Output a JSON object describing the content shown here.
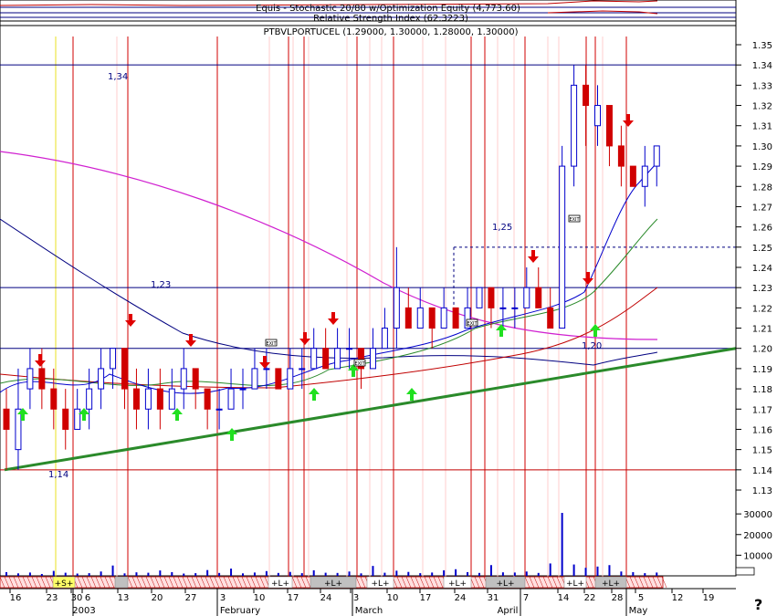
{
  "header": {
    "line1": "Equis - Stochastic 20/80 w/Optimization Equity (4,773.60)",
    "line2": "Relative Strength Index (62.3223)",
    "line3": "PTBVLPORTUCEL (1.29000, 1.30000, 1.28000, 1.30000)"
  },
  "chart_data": {
    "type": "candlestick",
    "title": "PTBVLPORTUCEL (1.29000, 1.30000, 1.28000, 1.30000)",
    "price_axis": {
      "ylim": [
        1.125,
        1.36
      ],
      "ticks": [
        "1.35",
        "1.34",
        "1.33",
        "1.32",
        "1.31",
        "1.30",
        "1.29",
        "1.28",
        "1.27",
        "1.26",
        "1.25",
        "1.24",
        "1.23",
        "1.22",
        "1.21",
        "1.20",
        "1.19",
        "1.18",
        "1.17",
        "1.16",
        "1.15",
        "1.14",
        "1.13"
      ]
    },
    "volume_axis": {
      "ylim": [
        0,
        32000
      ],
      "ticks": [
        "30000",
        "20000",
        "10000"
      ]
    },
    "date_ticks": [
      "16",
      "23",
      "30",
      "6",
      "13",
      "20",
      "27",
      "3",
      "10",
      "17",
      "24",
      "3",
      "10",
      "17",
      "24",
      "31",
      "7",
      "14",
      "22",
      "28",
      "5",
      "12",
      "19"
    ],
    "month_labels": [
      "2003",
      "February",
      "March",
      "April",
      "May"
    ],
    "horizontal_levels": [
      {
        "value": 1.34,
        "label": "1,34"
      },
      {
        "value": 1.23,
        "label": "1,23"
      },
      {
        "value": 1.2,
        "label": "1,20"
      },
      {
        "value": 1.14,
        "label": "1,14"
      },
      {
        "value": 1.25,
        "label": "1,25",
        "style": "dashed"
      }
    ],
    "trendline": {
      "from": [
        "16 Jan",
        1.14
      ],
      "to": [
        "19 May",
        1.2
      ]
    },
    "candles": [
      [
        1.17,
        1.16,
        1.14,
        1.18
      ],
      [
        1.15,
        1.17,
        1.14,
        1.19
      ],
      [
        1.18,
        1.19,
        1.17,
        1.2
      ],
      [
        1.19,
        1.18,
        1.17,
        1.2
      ],
      [
        1.18,
        1.17,
        1.16,
        1.19
      ],
      [
        1.17,
        1.16,
        1.15,
        1.18
      ],
      [
        1.16,
        1.17,
        1.16,
        1.18
      ],
      [
        1.17,
        1.18,
        1.16,
        1.19
      ],
      [
        1.18,
        1.19,
        1.17,
        1.2
      ],
      [
        1.19,
        1.2,
        1.18,
        1.2
      ],
      [
        1.2,
        1.18,
        1.17,
        1.2
      ],
      [
        1.18,
        1.17,
        1.16,
        1.19
      ],
      [
        1.17,
        1.18,
        1.16,
        1.19
      ],
      [
        1.18,
        1.17,
        1.16,
        1.19
      ],
      [
        1.17,
        1.18,
        1.17,
        1.19
      ],
      [
        1.18,
        1.19,
        1.17,
        1.2
      ],
      [
        1.19,
        1.18,
        1.17,
        1.19
      ],
      [
        1.18,
        1.17,
        1.16,
        1.18
      ],
      [
        1.17,
        1.17,
        1.16,
        1.18
      ],
      [
        1.17,
        1.18,
        1.17,
        1.19
      ],
      [
        1.18,
        1.18,
        1.17,
        1.19
      ],
      [
        1.18,
        1.19,
        1.18,
        1.2
      ],
      [
        1.19,
        1.19,
        1.18,
        1.2
      ],
      [
        1.19,
        1.18,
        1.18,
        1.19
      ],
      [
        1.18,
        1.19,
        1.18,
        1.2
      ],
      [
        1.19,
        1.19,
        1.18,
        1.2
      ],
      [
        1.19,
        1.2,
        1.19,
        1.21
      ],
      [
        1.2,
        1.19,
        1.19,
        1.21
      ],
      [
        1.19,
        1.2,
        1.19,
        1.21
      ],
      [
        1.2,
        1.2,
        1.19,
        1.21
      ],
      [
        1.2,
        1.19,
        1.18,
        1.2
      ],
      [
        1.19,
        1.2,
        1.19,
        1.21
      ],
      [
        1.2,
        1.21,
        1.2,
        1.22
      ],
      [
        1.21,
        1.23,
        1.2,
        1.25
      ],
      [
        1.22,
        1.21,
        1.21,
        1.23
      ],
      [
        1.21,
        1.22,
        1.21,
        1.23
      ],
      [
        1.22,
        1.21,
        1.2,
        1.22
      ],
      [
        1.21,
        1.22,
        1.21,
        1.23
      ],
      [
        1.22,
        1.21,
        1.21,
        1.22
      ],
      [
        1.21,
        1.22,
        1.21,
        1.23
      ],
      [
        1.22,
        1.23,
        1.22,
        1.23
      ],
      [
        1.23,
        1.22,
        1.21,
        1.23
      ],
      [
        1.22,
        1.22,
        1.21,
        1.23
      ],
      [
        1.22,
        1.22,
        1.21,
        1.23
      ],
      [
        1.22,
        1.23,
        1.22,
        1.24
      ],
      [
        1.23,
        1.22,
        1.22,
        1.24
      ],
      [
        1.22,
        1.21,
        1.21,
        1.23
      ],
      [
        1.21,
        1.29,
        1.21,
        1.3
      ],
      [
        1.29,
        1.33,
        1.28,
        1.34
      ],
      [
        1.33,
        1.32,
        1.3,
        1.34
      ],
      [
        1.31,
        1.32,
        1.3,
        1.33
      ],
      [
        1.32,
        1.3,
        1.29,
        1.32
      ],
      [
        1.3,
        1.29,
        1.28,
        1.31
      ],
      [
        1.29,
        1.28,
        1.28,
        1.29
      ],
      [
        1.28,
        1.29,
        1.27,
        1.3
      ],
      [
        1.29,
        1.3,
        1.28,
        1.3
      ]
    ],
    "volume": [
      1800,
      1200,
      1600,
      900,
      2400,
      1500,
      1100,
      1300,
      2100,
      5000,
      1200,
      1700,
      1500,
      2600,
      1800,
      1100,
      1300,
      2800,
      1400,
      3500,
      1200,
      1600,
      2300,
      1400,
      1900,
      1300,
      2700,
      1500,
      1400,
      2100,
      1200,
      4800,
      1500,
      2500,
      1900,
      1300,
      1600,
      2700,
      3200,
      1800,
      1400,
      5200,
      1700,
      1600,
      2100,
      1400,
      6000,
      30500,
      5500,
      3900,
      4500,
      5200,
      2100,
      1800,
      1300,
      1600
    ],
    "ribbon": {
      "labels": [
        "+S+",
        "+L+",
        "+L+",
        "+L+",
        "+L+",
        "+L+",
        "+L+",
        "+L+"
      ]
    },
    "indicator_badges": [
      "EXIT",
      "EXIT",
      "EXIT",
      "EXIT"
    ]
  },
  "question_mark": "?"
}
